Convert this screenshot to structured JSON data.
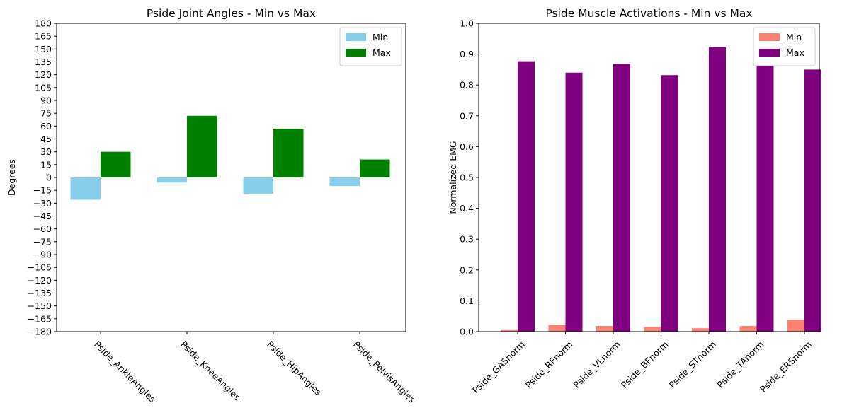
{
  "chart_data": [
    {
      "type": "bar",
      "title": "Pside Joint Angles - Min vs Max",
      "xlabel": "",
      "ylabel": "Degrees",
      "ylim": [
        -180,
        180
      ],
      "yticks": [
        -180,
        -165,
        -150,
        -135,
        -120,
        -105,
        -90,
        -75,
        -60,
        -45,
        -30,
        -15,
        0,
        15,
        30,
        45,
        60,
        75,
        90,
        105,
        120,
        135,
        150,
        165,
        180
      ],
      "ytick_labels": [
        "−180",
        "−165",
        "−150",
        "−135",
        "−120",
        "−105",
        "−90",
        "−75",
        "−60",
        "−45",
        "−30",
        "−15",
        "0",
        "15",
        "30",
        "45",
        "60",
        "75",
        "90",
        "105",
        "120",
        "135",
        "150",
        "165",
        "180"
      ],
      "categories": [
        "Pside_AnkleAngles",
        "Pside_KneeAngles",
        "Pside_HipAngles",
        "Pside_PelvisAngles"
      ],
      "series": [
        {
          "name": "Min",
          "color": "#87ceeb",
          "values": [
            -26,
            -6,
            -19,
            -10
          ]
        },
        {
          "name": "Max",
          "color": "#008000",
          "values": [
            30,
            72,
            57,
            21
          ]
        }
      ],
      "legend": "top-right",
      "grid": false
    },
    {
      "type": "bar",
      "title": "Pside Muscle Activations - Min vs Max",
      "xlabel": "",
      "ylabel": "Normalized EMG",
      "ylim": [
        0.0,
        1.0
      ],
      "yticks": [
        0.0,
        0.1,
        0.2,
        0.3,
        0.4,
        0.5,
        0.6,
        0.7,
        0.8,
        0.9,
        1.0
      ],
      "ytick_labels": [
        "0.0",
        "0.1",
        "0.2",
        "0.3",
        "0.4",
        "0.5",
        "0.6",
        "0.7",
        "0.8",
        "0.9",
        "1.0"
      ],
      "categories": [
        "Pside_GASnorm",
        "Pside_RFnorm",
        "Pside_VLnorm",
        "Pside_BFnorm",
        "Pside_STnorm",
        "Pside_TAnorm",
        "Pside_ERSnorm"
      ],
      "series": [
        {
          "name": "Min",
          "color": "#fa8072",
          "values": [
            0.005,
            0.022,
            0.018,
            0.015,
            0.011,
            0.018,
            0.038
          ]
        },
        {
          "name": "Max",
          "color": "#800080",
          "values": [
            0.877,
            0.84,
            0.868,
            0.832,
            0.923,
            0.862,
            0.85
          ]
        }
      ],
      "legend": "top-right",
      "grid": false
    }
  ]
}
